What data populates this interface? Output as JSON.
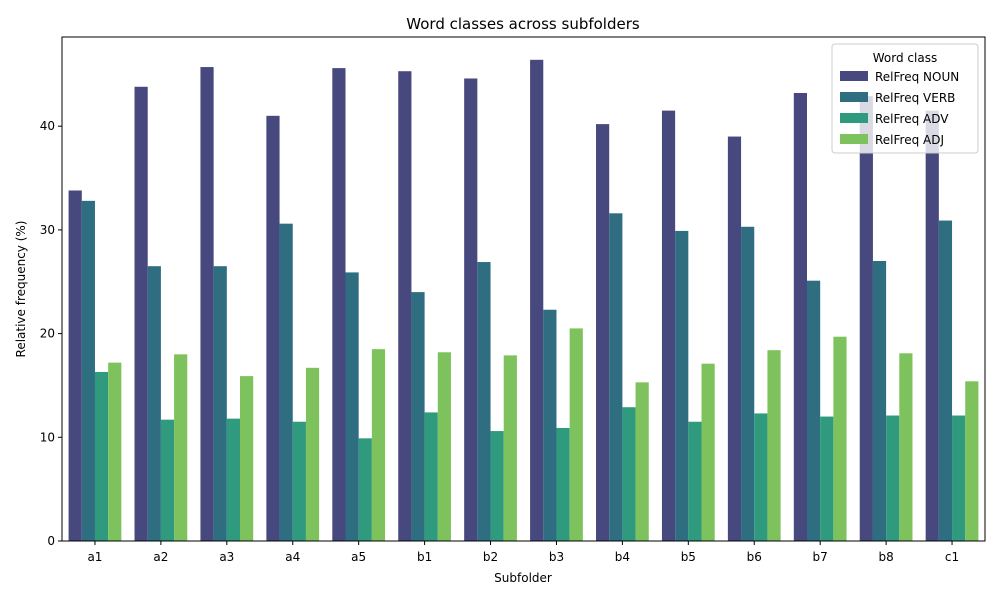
{
  "chart_data": {
    "type": "bar",
    "title": "Word classes across subfolders",
    "xlabel": "Subfolder",
    "ylabel": "Relative frequency (%)",
    "ylim": [
      0,
      48.6
    ],
    "yticks": [
      0,
      10,
      20,
      30,
      40
    ],
    "grid": false,
    "legend": {
      "title": "Word class",
      "placement": "top-right"
    },
    "categories": [
      "a1",
      "a2",
      "a3",
      "a4",
      "a5",
      "b1",
      "b2",
      "b3",
      "b4",
      "b5",
      "b6",
      "b7",
      "b8",
      "c1"
    ],
    "series": [
      {
        "name": "RelFreq NOUN",
        "color": "#46487e",
        "values": [
          33.8,
          43.8,
          45.7,
          41.0,
          45.6,
          45.3,
          44.6,
          46.4,
          40.2,
          41.5,
          39.0,
          43.2,
          42.9,
          41.5
        ]
      },
      {
        "name": "RelFreq VERB",
        "color": "#2e6e80",
        "values": [
          32.8,
          26.5,
          26.5,
          30.6,
          25.9,
          24.0,
          26.9,
          22.3,
          31.6,
          29.9,
          30.3,
          25.1,
          27.0,
          30.9
        ]
      },
      {
        "name": "RelFreq ADV",
        "color": "#2f9a7e",
        "values": [
          16.3,
          11.7,
          11.8,
          11.5,
          9.9,
          12.4,
          10.6,
          10.9,
          12.9,
          11.5,
          12.3,
          12.0,
          12.1,
          12.1
        ]
      },
      {
        "name": "RelFreq ADJ",
        "color": "#7ec25e",
        "values": [
          17.2,
          18.0,
          15.9,
          16.7,
          18.5,
          18.2,
          17.9,
          20.5,
          15.3,
          17.1,
          18.4,
          19.7,
          18.1,
          15.4
        ]
      }
    ]
  }
}
